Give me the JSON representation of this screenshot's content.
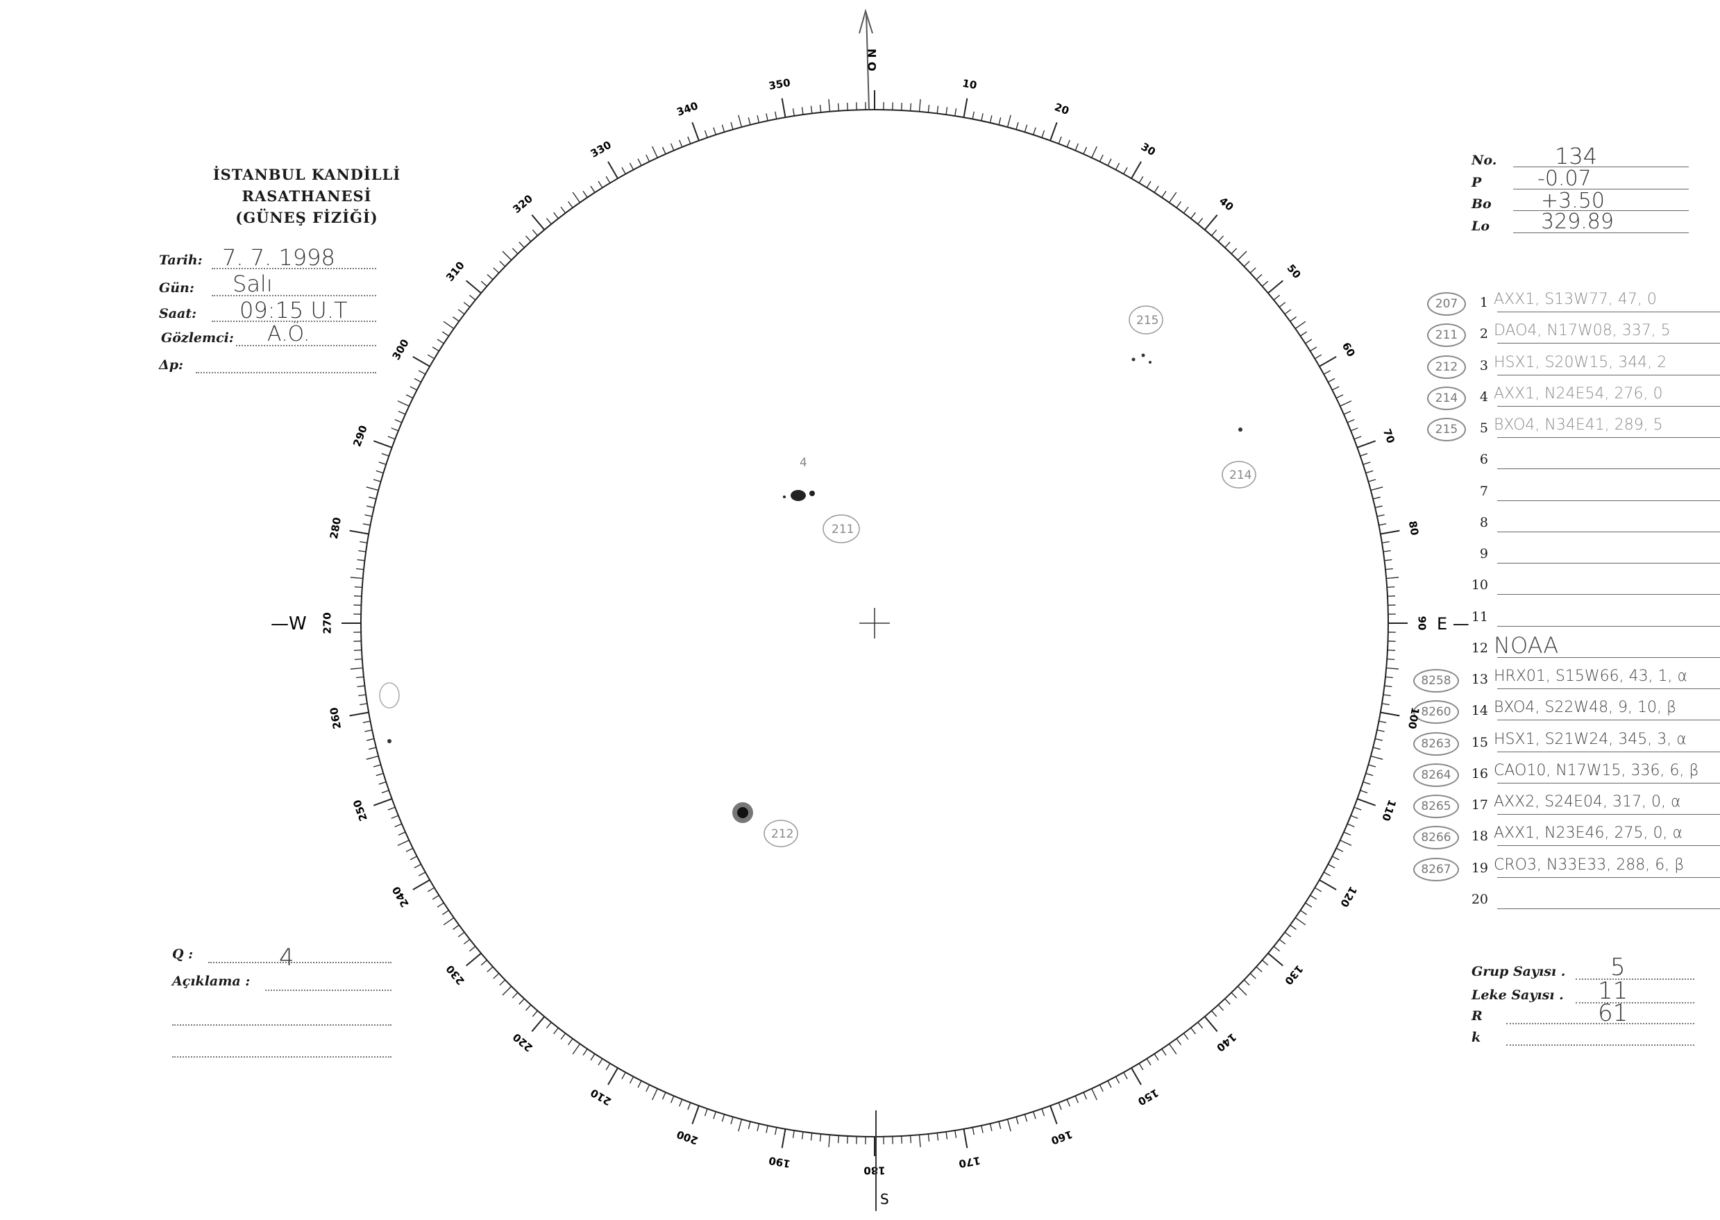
{
  "header": {
    "institution": "İSTANBUL KANDİLLİ RASATHANESİ",
    "department": "(GÜNEŞ FİZİĞİ)"
  },
  "observation": {
    "tarih_label": "Tarih:",
    "tarih": "7. 7. 1998",
    "gun_label": "Gün:",
    "gun": "Salı",
    "saat_label": "Saat:",
    "saat": "09:15 U.T",
    "gozlemci_label": "Gözlemci:",
    "gozlemci": "A.Ö.",
    "dp_label": "Δp:",
    "dp": ""
  },
  "quality": {
    "q_label": "Q :",
    "q": "4",
    "aciklama_label": "Açıklama :",
    "aciklama": ""
  },
  "parameters": {
    "no_label": "No.",
    "no": "134",
    "p_label": "P",
    "p": "-0.07",
    "bo_label": "Bo",
    "bo": "+3.50",
    "lo_label": "Lo",
    "lo": "329.89"
  },
  "groups": [
    {
      "n": "1",
      "id": "207",
      "text": "AXX1, S13W77, 47, 0"
    },
    {
      "n": "2",
      "id": "211",
      "text": "DAO4, N17W08, 337, 5"
    },
    {
      "n": "3",
      "id": "212",
      "text": "HSX1, S20W15, 344, 2"
    },
    {
      "n": "4",
      "id": "214",
      "text": "AXX1, N24E54, 276, 0"
    },
    {
      "n": "5",
      "id": "215",
      "text": "BXO4, N34E41, 289, 5"
    },
    {
      "n": "6",
      "id": "",
      "text": ""
    },
    {
      "n": "7",
      "id": "",
      "text": ""
    },
    {
      "n": "8",
      "id": "",
      "text": ""
    },
    {
      "n": "9",
      "id": "",
      "text": ""
    },
    {
      "n": "10",
      "id": "",
      "text": ""
    },
    {
      "n": "11",
      "id": "",
      "text": ""
    },
    {
      "n": "12",
      "id": "",
      "text": "NOAA"
    },
    {
      "n": "13",
      "id": "8258",
      "text": "HRX01, S15W66, 43, 1, α"
    },
    {
      "n": "14",
      "id": "8260",
      "text": "BXO4, S22W48, 9, 10, β"
    },
    {
      "n": "15",
      "id": "8263",
      "text": "HSX1, S21W24, 345, 3, α"
    },
    {
      "n": "16",
      "id": "8264",
      "text": "CAO10, N17W15, 336, 6, β"
    },
    {
      "n": "17",
      "id": "8265",
      "text": "AXX2, S24E04, 317, 0, α"
    },
    {
      "n": "18",
      "id": "8266",
      "text": "AXX1, N23E46, 275, 0, α"
    },
    {
      "n": "19",
      "id": "8267",
      "text": "CRO3, N33E33, 288, 6, β"
    },
    {
      "n": "20",
      "id": "",
      "text": ""
    }
  ],
  "summary": {
    "grup_label": "Grup Sayısı .",
    "grup": "5",
    "leke_label": "Leke Sayısı .",
    "leke": "11",
    "r_label": "R",
    "r": "61",
    "k_label": "k",
    "k": ""
  },
  "disk": {
    "north_letters": "N O",
    "south": "S",
    "west": "—W",
    "east": "E —",
    "tick_labels": [
      "0",
      "10",
      "20",
      "30",
      "40",
      "50",
      "60",
      "70",
      "80",
      "90",
      "100",
      "110",
      "120",
      "130",
      "140",
      "150",
      "160",
      "170",
      "180",
      "190",
      "200",
      "210",
      "220",
      "230",
      "240",
      "250",
      "260",
      "270",
      "280",
      "290",
      "300",
      "310",
      "320",
      "330",
      "340",
      "350"
    ],
    "annotations": [
      {
        "text": "215",
        "type": "circled"
      },
      {
        "text": "211",
        "type": "circled"
      },
      {
        "text": "214",
        "type": "circled"
      },
      {
        "text": "212",
        "type": "circled"
      },
      {
        "text": "4",
        "type": "plain"
      }
    ]
  }
}
